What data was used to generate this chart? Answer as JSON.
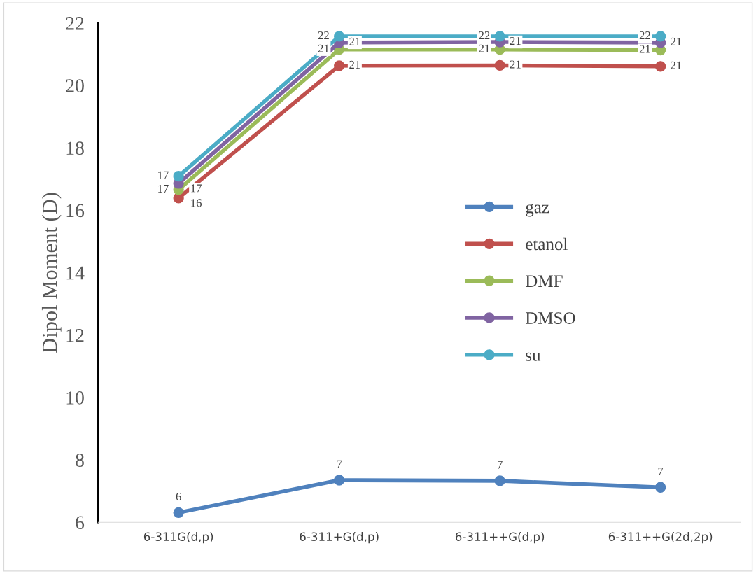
{
  "chart_data": {
    "type": "line",
    "ylabel": "Dipol Moment (D)",
    "categories": [
      "6-311G(d,p)",
      "6-311+G(d,p)",
      "6-311++G(d,p)",
      "6-311++G(2d,2p)"
    ],
    "series": [
      {
        "name": "gaz",
        "color": "#4f81bd",
        "values": [
          6.31,
          7.35,
          7.33,
          7.12
        ],
        "value_labels": [
          "6",
          "7",
          "7",
          "7"
        ]
      },
      {
        "name": "etanol",
        "color": "#c0504d",
        "values": [
          16.39,
          20.63,
          20.64,
          20.61
        ],
        "value_labels": [
          "16",
          "21",
          "21",
          "21"
        ]
      },
      {
        "name": "DMF",
        "color": "#9bbb59",
        "values": [
          16.66,
          21.15,
          21.15,
          21.13
        ],
        "value_labels": [
          "17",
          "21",
          "21",
          "21"
        ]
      },
      {
        "name": "DMSO",
        "color": "#8064a2",
        "values": [
          16.86,
          21.37,
          21.39,
          21.37
        ],
        "value_labels": [
          "17",
          "21",
          "21",
          "21"
        ]
      },
      {
        "name": "su",
        "color": "#4bacc6",
        "values": [
          17.09,
          21.57,
          21.57,
          21.57
        ],
        "value_labels": [
          "17",
          "22",
          "22",
          "22"
        ]
      }
    ],
    "ylim": [
      6,
      22
    ],
    "yticks": [
      6,
      8,
      10,
      12,
      14,
      16,
      18,
      20,
      22
    ],
    "grid": false,
    "legend": "right",
    "marker": "circle",
    "line_style": "solid"
  }
}
